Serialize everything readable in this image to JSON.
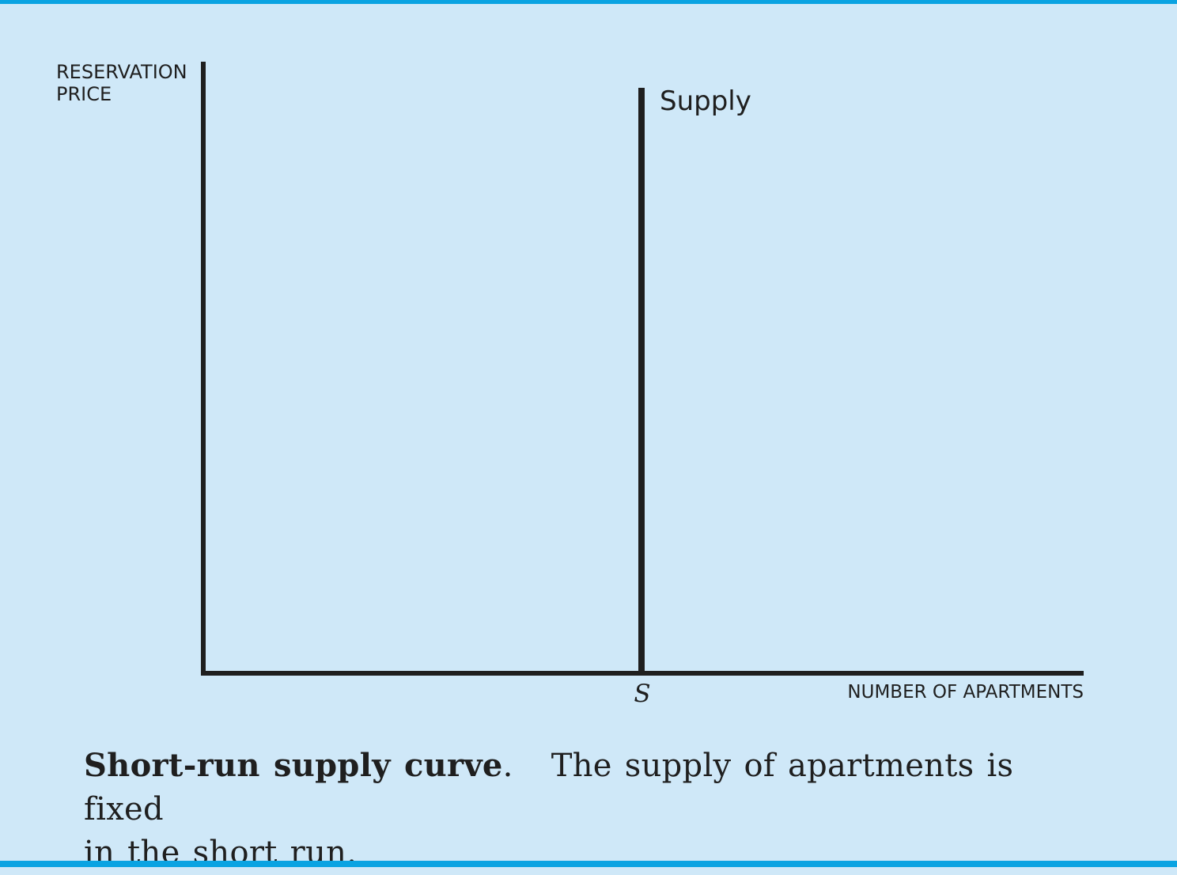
{
  "diagram": {
    "y_axis_label_line1": "RESERVATION",
    "y_axis_label_line2": "PRICE",
    "x_axis_label": "NUMBER OF APARTMENTS",
    "curve_label": "Supply",
    "quantity_tick_label": "S"
  },
  "caption": {
    "title": "Short-run supply curve",
    "separator": ".",
    "text_line1": "The supply of apartments is fixed",
    "text_line2": "in the short run."
  },
  "colors": {
    "background": "#cfe8f8",
    "border_rule": "#0aa3e2",
    "ink": "#1f1f1f"
  }
}
